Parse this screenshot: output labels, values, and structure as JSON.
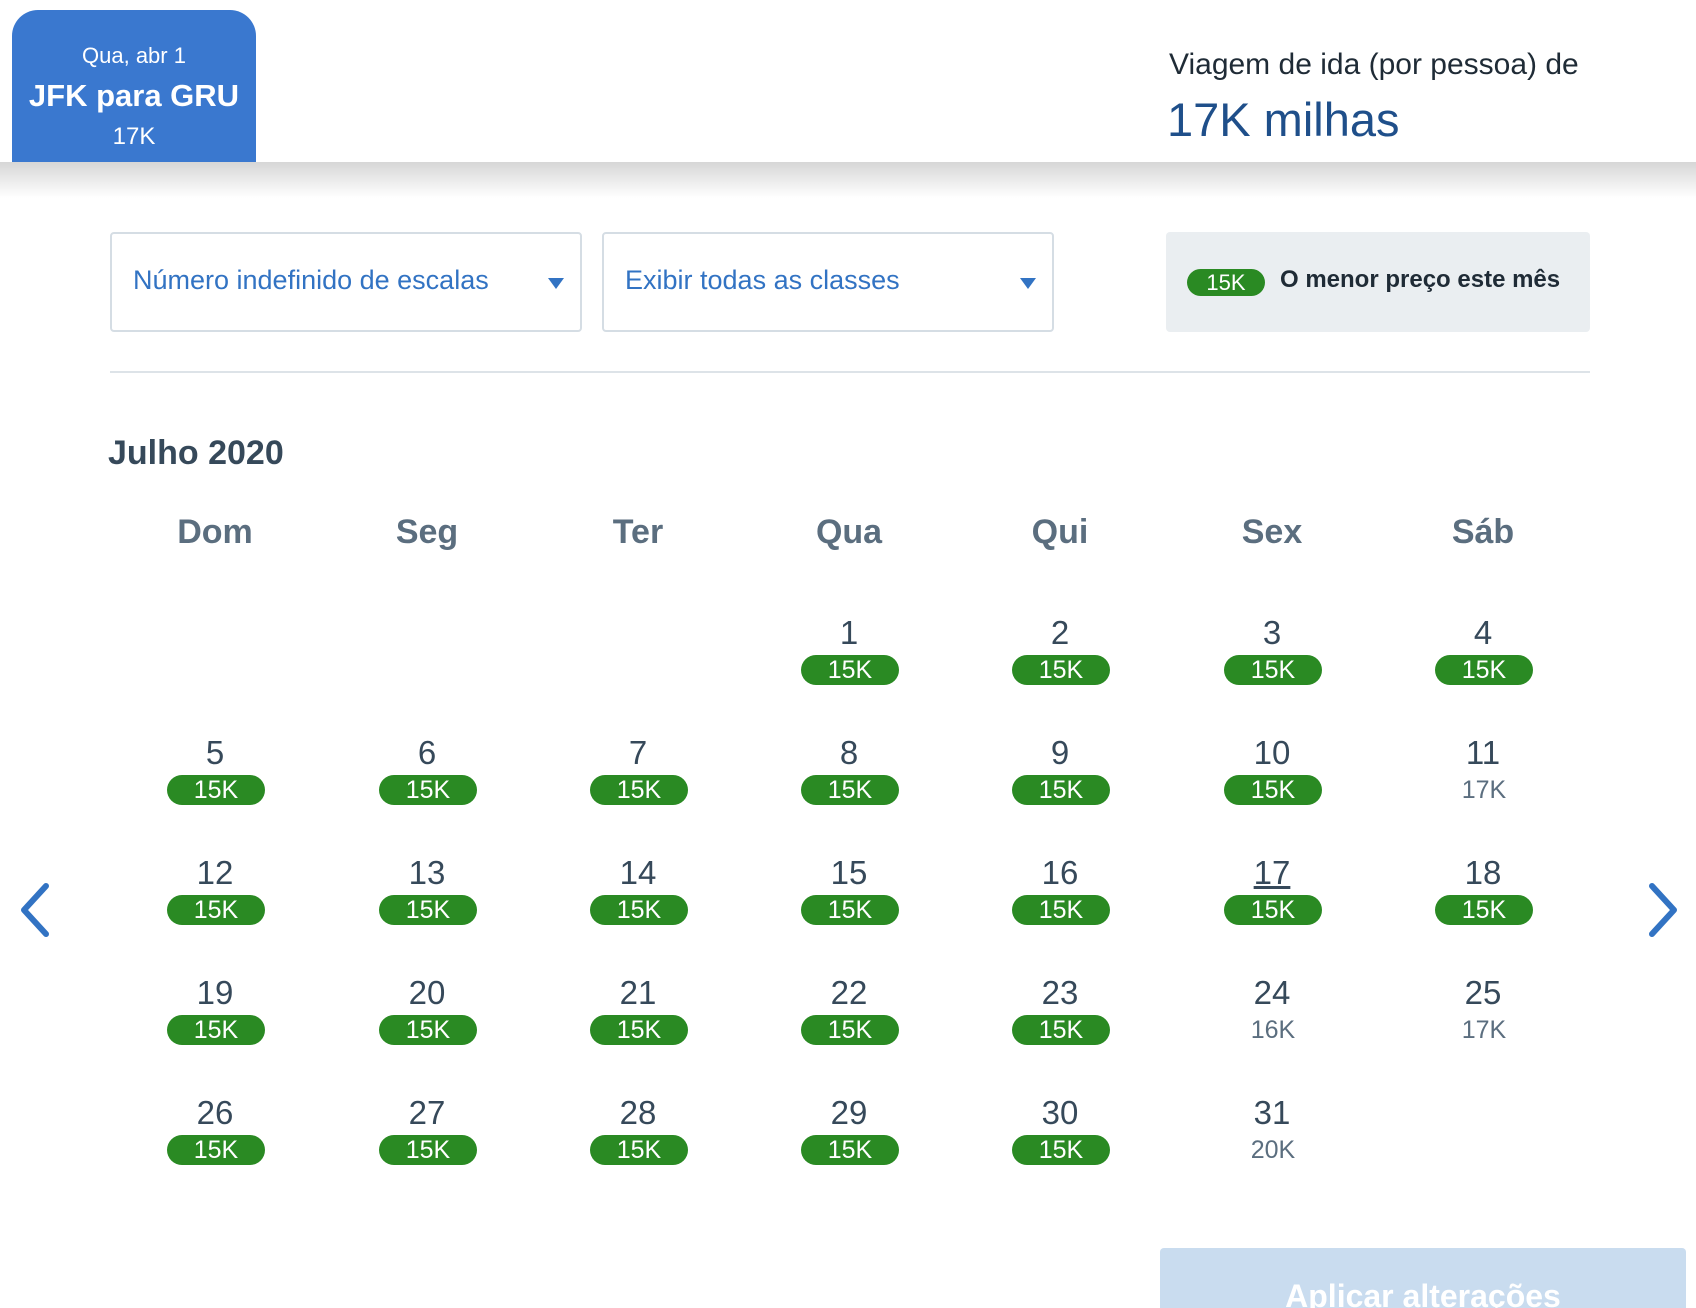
{
  "trip_tab": {
    "date": "Qua, abr 1",
    "route": "JFK para GRU",
    "price": "17K"
  },
  "summary": {
    "label": "Viagem de ida (por pessoa) de",
    "value": "17K milhas"
  },
  "filters": {
    "stops": {
      "value": "Número indefinido de escalas"
    },
    "classes": {
      "value": "Exibir todas as classes"
    }
  },
  "legend": {
    "badge": "15K",
    "text": "O menor preço este mês"
  },
  "calendar": {
    "month_title": "Julho 2020",
    "weekdays": [
      "Dom",
      "Seg",
      "Ter",
      "Qua",
      "Qui",
      "Sex",
      "Sáb"
    ],
    "first_weekday_index": 3,
    "days": [
      {
        "day": "1",
        "price": "15K",
        "lowest": true
      },
      {
        "day": "2",
        "price": "15K",
        "lowest": true
      },
      {
        "day": "3",
        "price": "15K",
        "lowest": true
      },
      {
        "day": "4",
        "price": "15K",
        "lowest": true
      },
      {
        "day": "5",
        "price": "15K",
        "lowest": true
      },
      {
        "day": "6",
        "price": "15K",
        "lowest": true
      },
      {
        "day": "7",
        "price": "15K",
        "lowest": true
      },
      {
        "day": "8",
        "price": "15K",
        "lowest": true
      },
      {
        "day": "9",
        "price": "15K",
        "lowest": true
      },
      {
        "day": "10",
        "price": "15K",
        "lowest": true
      },
      {
        "day": "11",
        "price": "17K",
        "lowest": false
      },
      {
        "day": "12",
        "price": "15K",
        "lowest": true
      },
      {
        "day": "13",
        "price": "15K",
        "lowest": true
      },
      {
        "day": "14",
        "price": "15K",
        "lowest": true
      },
      {
        "day": "15",
        "price": "15K",
        "lowest": true
      },
      {
        "day": "16",
        "price": "15K",
        "lowest": true
      },
      {
        "day": "17",
        "price": "15K",
        "lowest": true,
        "underlined": true
      },
      {
        "day": "18",
        "price": "15K",
        "lowest": true
      },
      {
        "day": "19",
        "price": "15K",
        "lowest": true
      },
      {
        "day": "20",
        "price": "15K",
        "lowest": true
      },
      {
        "day": "21",
        "price": "15K",
        "lowest": true
      },
      {
        "day": "22",
        "price": "15K",
        "lowest": true
      },
      {
        "day": "23",
        "price": "15K",
        "lowest": true
      },
      {
        "day": "24",
        "price": "16K",
        "lowest": false
      },
      {
        "day": "25",
        "price": "17K",
        "lowest": false
      },
      {
        "day": "26",
        "price": "15K",
        "lowest": true
      },
      {
        "day": "27",
        "price": "15K",
        "lowest": true
      },
      {
        "day": "28",
        "price": "15K",
        "lowest": true
      },
      {
        "day": "29",
        "price": "15K",
        "lowest": true
      },
      {
        "day": "30",
        "price": "15K",
        "lowest": true
      },
      {
        "day": "31",
        "price": "20K",
        "lowest": false
      }
    ]
  },
  "navigation": {
    "prev_icon": "chevron-left-icon",
    "next_icon": "chevron-right-icon"
  },
  "actions": {
    "apply_label": "Aplicar alterações"
  },
  "colors": {
    "brand_blue": "#3a78cf",
    "link_blue": "#3273c3",
    "lowest_price_green": "#2a8a23",
    "apply_disabled": "#c9dcef"
  }
}
